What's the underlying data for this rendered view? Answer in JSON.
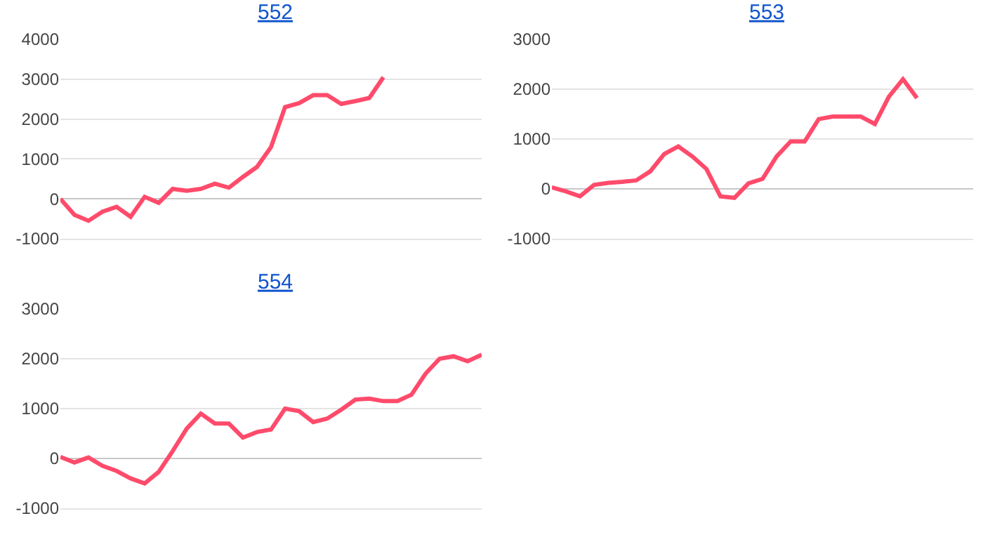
{
  "chart_data": [
    {
      "type": "line",
      "title": "552",
      "categories": [
        null,
        null,
        null,
        null,
        null,
        null,
        null,
        null,
        null,
        null,
        null,
        null,
        null,
        null,
        null,
        null,
        null,
        null,
        null,
        null,
        null,
        null,
        null,
        null,
        null,
        null,
        null,
        null,
        null,
        null,
        null
      ],
      "values": [
        0,
        -400,
        -550,
        -320,
        -200,
        -450,
        50,
        -100,
        250,
        200,
        250,
        380,
        280,
        550,
        800,
        1300,
        2300,
        2400,
        2600,
        2600,
        2380,
        2450,
        2530,
        3050,
        null,
        null,
        null,
        null,
        null,
        null,
        null
      ],
      "color": "#ff4b6b",
      "ylim": [
        -1000,
        4000
      ],
      "yticks": [
        -1000,
        0,
        1000,
        2000,
        3000,
        4000
      ],
      "grid": "y",
      "tick_labels": "y"
    },
    {
      "type": "line",
      "title": "553",
      "categories": [
        null,
        null,
        null,
        null,
        null,
        null,
        null,
        null,
        null,
        null,
        null,
        null,
        null,
        null,
        null,
        null,
        null,
        null,
        null,
        null,
        null,
        null,
        null,
        null,
        null,
        null,
        null,
        null,
        null,
        null,
        null
      ],
      "values": [
        30,
        -50,
        -150,
        80,
        120,
        140,
        170,
        350,
        700,
        850,
        650,
        400,
        -150,
        -180,
        110,
        200,
        650,
        950,
        950,
        1400,
        1450,
        1450,
        1450,
        1300,
        1850,
        2200,
        1820,
        null,
        null,
        null,
        null
      ],
      "color": "#ff4b6b",
      "ylim": [
        -1000,
        3000
      ],
      "yticks": [
        -1000,
        0,
        1000,
        2000,
        3000
      ],
      "grid": "y",
      "tick_labels": "y"
    },
    {
      "type": "line",
      "title": "554",
      "categories": [
        null,
        null,
        null,
        null,
        null,
        null,
        null,
        null,
        null,
        null,
        null,
        null,
        null,
        null,
        null,
        null,
        null,
        null,
        null,
        null,
        null,
        null,
        null,
        null,
        null,
        null,
        null,
        null,
        null,
        null,
        null
      ],
      "values": [
        30,
        -80,
        20,
        -150,
        -250,
        -400,
        -500,
        -270,
        150,
        600,
        900,
        700,
        700,
        420,
        530,
        580,
        1000,
        950,
        730,
        800,
        980,
        1180,
        1200,
        1150,
        1150,
        1280,
        1700,
        2000,
        2050,
        1950,
        2080
      ],
      "color": "#ff4b6b",
      "ylim": [
        -1000,
        3000
      ],
      "yticks": [
        -1000,
        0,
        1000,
        2000,
        3000
      ],
      "grid": "y",
      "tick_labels": "y"
    }
  ]
}
